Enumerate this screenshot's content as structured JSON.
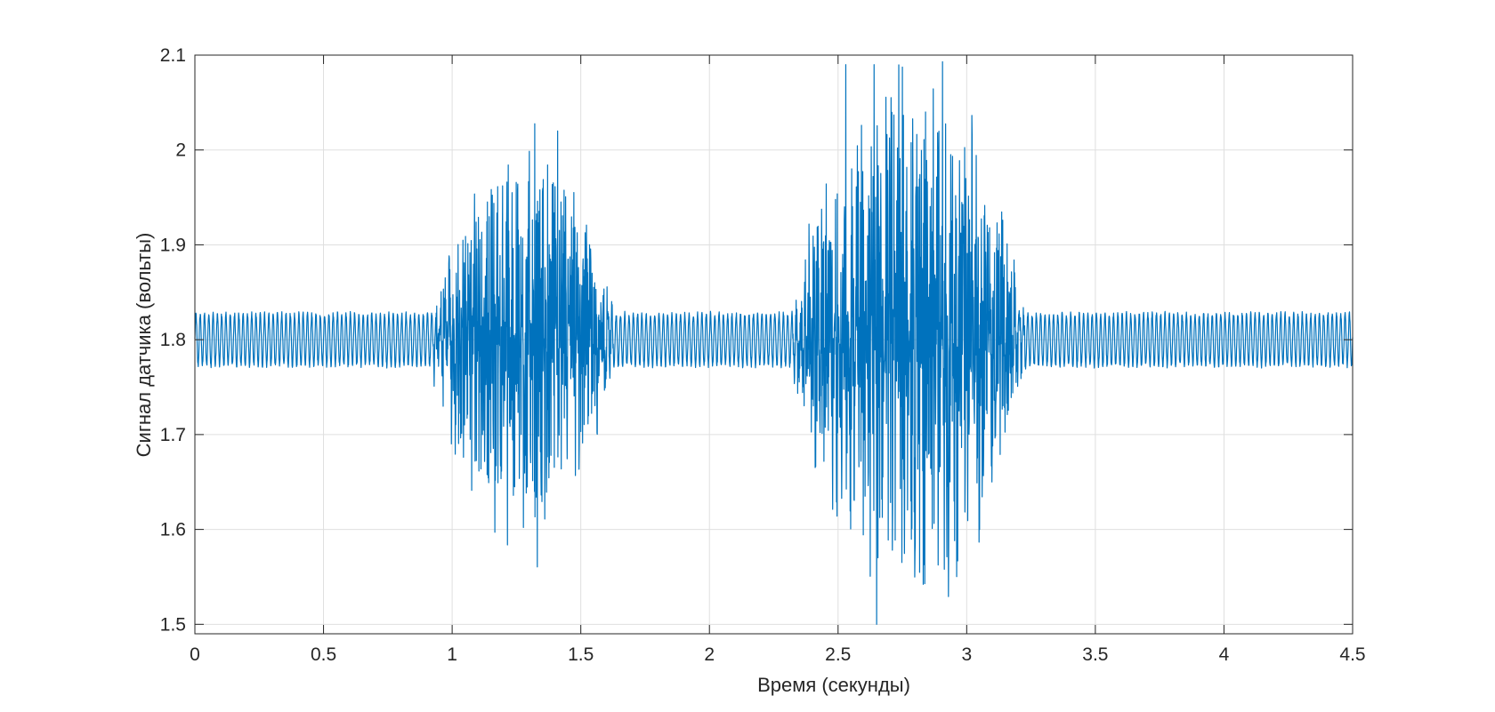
{
  "chart_data": {
    "type": "line",
    "title": "",
    "xlabel": "Время (секунды)",
    "ylabel": "Сигнал датчика (вольты)",
    "xlim": [
      0,
      4.5
    ],
    "ylim": [
      1.49,
      2.1
    ],
    "xticks": [
      0,
      0.5,
      1,
      1.5,
      2,
      2.5,
      3,
      3.5,
      4,
      4.5
    ],
    "xtick_labels": [
      "0",
      "0.5",
      "1",
      "1.5",
      "2",
      "2.5",
      "3",
      "3.5",
      "4",
      "4.5"
    ],
    "yticks": [
      1.5,
      1.6,
      1.7,
      1.8,
      1.9,
      2.0,
      2.1
    ],
    "ytick_labels": [
      "1.5",
      "1.6",
      "1.7",
      "1.8",
      "1.9",
      "2",
      "2.1"
    ],
    "grid": true,
    "series": [
      {
        "color": "#0072BD",
        "sample_rate_hz": 1000,
        "baseline": 1.8,
        "carrier_frequency_hz": 60,
        "carrier_amplitude": 0.027,
        "bursts": [
          {
            "start": 0.92,
            "end": 1.63,
            "peak_max": 2.02,
            "peak_min": 1.64
          },
          {
            "start": 2.32,
            "end": 3.23,
            "peak_max": 2.09,
            "peak_min": 1.5
          }
        ],
        "notable_points": [
          {
            "x": 1.41,
            "y": 2.02
          },
          {
            "x": 1.32,
            "y": 1.64
          },
          {
            "x": 2.53,
            "y": 2.09
          },
          {
            "x": 2.64,
            "y": 2.09
          },
          {
            "x": 2.65,
            "y": 1.5
          },
          {
            "x": 2.84,
            "y": 2.04
          },
          {
            "x": 3.05,
            "y": 1.6
          }
        ]
      }
    ]
  },
  "colors": {
    "line": "#0072BD",
    "axes": "#262626",
    "grid": "#dfdfdf",
    "background": "#ffffff"
  }
}
